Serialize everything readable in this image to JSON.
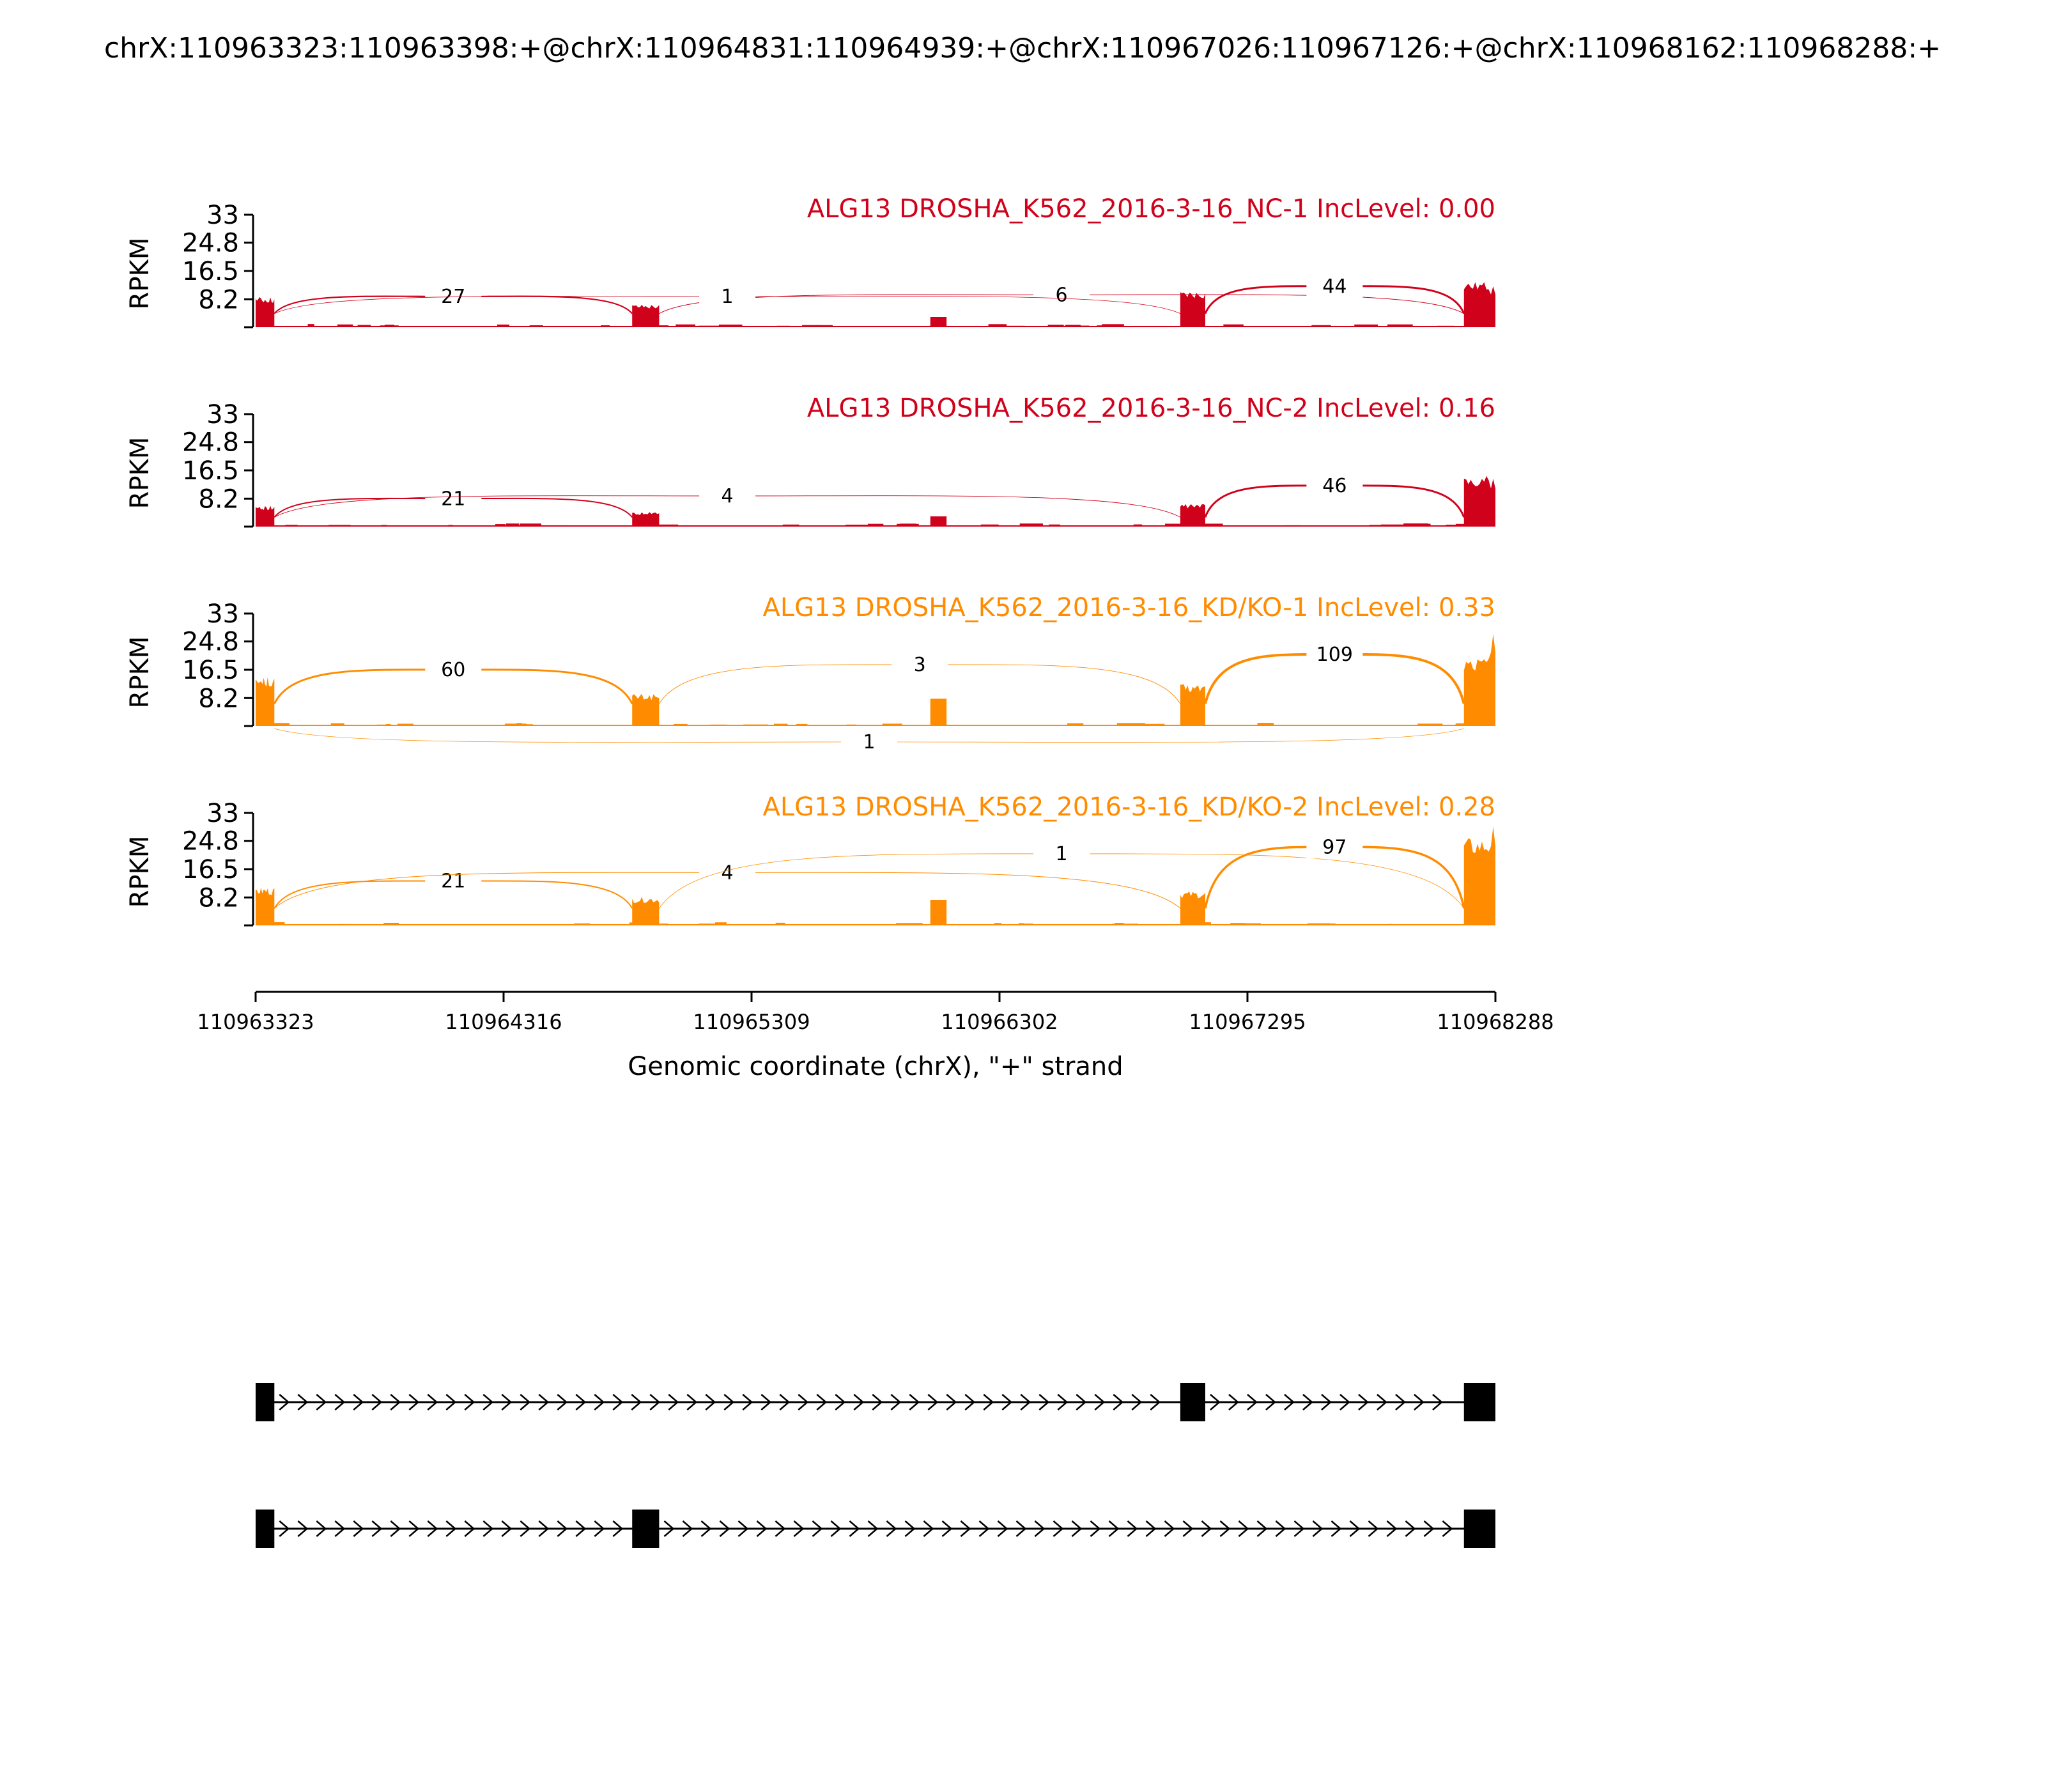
{
  "title": "chrX:110963323:110963398:+@chrX:110964831:110964939:+@chrX:110967026:110967126:+@chrX:110968162:110968288:+",
  "colors": {
    "nc": "#d0021b",
    "kd": "#ff8c00",
    "gene": "#000000",
    "axis": "#000000"
  },
  "chart_data": {
    "type": "sashimi",
    "xlabel": "Genomic coordinate (chrX), \"+\" strand",
    "ylabel": "RPKM",
    "xlim": [
      110963323,
      110968288
    ],
    "xticks": [
      110963323,
      110964316,
      110965309,
      110966302,
      110967295,
      110968288
    ],
    "xtick_labels": [
      "110963323",
      "110964316",
      "110965309",
      "110966302",
      "110967295",
      "110968288"
    ],
    "ylim": [
      0,
      33
    ],
    "yticks": [
      8.2,
      16.5,
      24.8,
      33
    ],
    "ytick_labels": [
      "8.2",
      "16.5",
      "24.8",
      "33"
    ],
    "exons": [
      {
        "start": 110963323,
        "end": 110963398
      },
      {
        "start": 110964831,
        "end": 110964939
      },
      {
        "start": 110967026,
        "end": 110967126
      },
      {
        "start": 110968162,
        "end": 110968288
      }
    ],
    "tracks": [
      {
        "label": "ALG13 DROSHA_K562_2016-3-16_NC-1 IncLevel: 0.00",
        "color": "nc",
        "exon_rpkm": [
          8,
          6,
          9.5,
          12
        ],
        "peak_rpkm": 12,
        "islands": [
          {
            "start": 110966025,
            "end": 110966090,
            "rpkm": 3
          }
        ],
        "junctions": [
          {
            "start": 110963398,
            "end": 110964831,
            "count": "27",
            "height": 9,
            "above": true,
            "width": 2.2
          },
          {
            "start": 110964939,
            "end": 110968162,
            "count": "6",
            "height": 9.5,
            "above": true,
            "width": 1
          },
          {
            "start": 110963398,
            "end": 110967026,
            "count": "1",
            "height": 9,
            "above": true,
            "width": 0.8
          },
          {
            "start": 110967126,
            "end": 110968162,
            "count": "44",
            "height": 12,
            "above": true,
            "width": 3
          }
        ]
      },
      {
        "label": "ALG13 DROSHA_K562_2016-3-16_NC-2 IncLevel: 0.16",
        "color": "nc",
        "exon_rpkm": [
          5.5,
          3.8,
          6,
          13.5
        ],
        "peak_rpkm": 14,
        "islands": [
          {
            "start": 110966025,
            "end": 110966090,
            "rpkm": 3
          }
        ],
        "junctions": [
          {
            "start": 110963398,
            "end": 110964831,
            "count": "21",
            "height": 8.2,
            "above": true,
            "width": 2
          },
          {
            "start": 110963398,
            "end": 110967026,
            "count": "4",
            "height": 9,
            "above": true,
            "width": 0.9
          },
          {
            "start": 110967126,
            "end": 110968162,
            "count": "46",
            "height": 12,
            "above": true,
            "width": 3
          }
        ]
      },
      {
        "label": "ALG13 DROSHA_K562_2016-3-16_KD/KO-1 IncLevel: 0.33",
        "color": "kd",
        "exon_rpkm": [
          13,
          8.5,
          11,
          18
        ],
        "peak_rpkm": 27,
        "islands": [
          {
            "start": 110966025,
            "end": 110966090,
            "rpkm": 8
          }
        ],
        "junctions": [
          {
            "start": 110963398,
            "end": 110964831,
            "count": "60",
            "height": 16.5,
            "above": true,
            "width": 3
          },
          {
            "start": 110964939,
            "end": 110967026,
            "count": "3",
            "height": 18,
            "above": true,
            "width": 0.9
          },
          {
            "start": 110967126,
            "end": 110968162,
            "count": "109",
            "height": 21,
            "above": true,
            "width": 4
          },
          {
            "start": 110963398,
            "end": 110968162,
            "count": "1",
            "height": 8.5,
            "above": false,
            "width": 0.7
          }
        ]
      },
      {
        "label": "ALG13 DROSHA_K562_2016-3-16_KD/KO-2 IncLevel: 0.28",
        "color": "kd",
        "exon_rpkm": [
          10,
          7.5,
          9,
          23
        ],
        "peak_rpkm": 29,
        "islands": [
          {
            "start": 110966025,
            "end": 110966090,
            "rpkm": 7.5
          }
        ],
        "junctions": [
          {
            "start": 110963398,
            "end": 110964831,
            "count": "21",
            "height": 13,
            "above": true,
            "width": 2
          },
          {
            "start": 110963398,
            "end": 110967026,
            "count": "4",
            "height": 15.5,
            "above": true,
            "width": 1
          },
          {
            "start": 110964939,
            "end": 110968162,
            "count": "1",
            "height": 21,
            "above": true,
            "width": 0.8
          },
          {
            "start": 110967126,
            "end": 110968162,
            "count": "97",
            "height": 23,
            "above": true,
            "width": 3.5
          }
        ]
      }
    ],
    "isoforms": [
      {
        "exons": [
          0,
          2,
          3
        ]
      },
      {
        "exons": [
          0,
          1,
          3
        ]
      }
    ]
  }
}
